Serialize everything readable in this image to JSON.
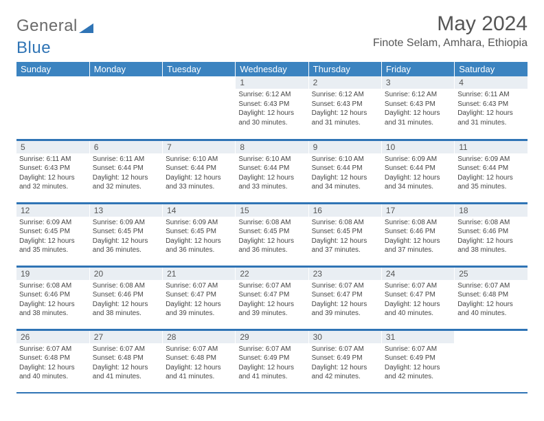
{
  "brand": {
    "part1": "General",
    "part2": "Blue"
  },
  "header": {
    "month": "May 2024",
    "location": "Finote Selam, Amhara, Ethiopia"
  },
  "colors": {
    "header_bg": "#3b83c0",
    "rule": "#2f74b5",
    "day_bg": "#e9eef3"
  },
  "weekdays": [
    "Sunday",
    "Monday",
    "Tuesday",
    "Wednesday",
    "Thursday",
    "Friday",
    "Saturday"
  ],
  "weeks": [
    [
      {
        "n": "",
        "lines": []
      },
      {
        "n": "",
        "lines": []
      },
      {
        "n": "",
        "lines": []
      },
      {
        "n": "1",
        "lines": [
          "Sunrise: 6:12 AM",
          "Sunset: 6:43 PM",
          "Daylight: 12 hours and 30 minutes."
        ]
      },
      {
        "n": "2",
        "lines": [
          "Sunrise: 6:12 AM",
          "Sunset: 6:43 PM",
          "Daylight: 12 hours and 31 minutes."
        ]
      },
      {
        "n": "3",
        "lines": [
          "Sunrise: 6:12 AM",
          "Sunset: 6:43 PM",
          "Daylight: 12 hours and 31 minutes."
        ]
      },
      {
        "n": "4",
        "lines": [
          "Sunrise: 6:11 AM",
          "Sunset: 6:43 PM",
          "Daylight: 12 hours and 31 minutes."
        ]
      }
    ],
    [
      {
        "n": "5",
        "lines": [
          "Sunrise: 6:11 AM",
          "Sunset: 6:43 PM",
          "Daylight: 12 hours and 32 minutes."
        ]
      },
      {
        "n": "6",
        "lines": [
          "Sunrise: 6:11 AM",
          "Sunset: 6:44 PM",
          "Daylight: 12 hours and 32 minutes."
        ]
      },
      {
        "n": "7",
        "lines": [
          "Sunrise: 6:10 AM",
          "Sunset: 6:44 PM",
          "Daylight: 12 hours and 33 minutes."
        ]
      },
      {
        "n": "8",
        "lines": [
          "Sunrise: 6:10 AM",
          "Sunset: 6:44 PM",
          "Daylight: 12 hours and 33 minutes."
        ]
      },
      {
        "n": "9",
        "lines": [
          "Sunrise: 6:10 AM",
          "Sunset: 6:44 PM",
          "Daylight: 12 hours and 34 minutes."
        ]
      },
      {
        "n": "10",
        "lines": [
          "Sunrise: 6:09 AM",
          "Sunset: 6:44 PM",
          "Daylight: 12 hours and 34 minutes."
        ]
      },
      {
        "n": "11",
        "lines": [
          "Sunrise: 6:09 AM",
          "Sunset: 6:44 PM",
          "Daylight: 12 hours and 35 minutes."
        ]
      }
    ],
    [
      {
        "n": "12",
        "lines": [
          "Sunrise: 6:09 AM",
          "Sunset: 6:45 PM",
          "Daylight: 12 hours and 35 minutes."
        ]
      },
      {
        "n": "13",
        "lines": [
          "Sunrise: 6:09 AM",
          "Sunset: 6:45 PM",
          "Daylight: 12 hours and 36 minutes."
        ]
      },
      {
        "n": "14",
        "lines": [
          "Sunrise: 6:09 AM",
          "Sunset: 6:45 PM",
          "Daylight: 12 hours and 36 minutes."
        ]
      },
      {
        "n": "15",
        "lines": [
          "Sunrise: 6:08 AM",
          "Sunset: 6:45 PM",
          "Daylight: 12 hours and 36 minutes."
        ]
      },
      {
        "n": "16",
        "lines": [
          "Sunrise: 6:08 AM",
          "Sunset: 6:45 PM",
          "Daylight: 12 hours and 37 minutes."
        ]
      },
      {
        "n": "17",
        "lines": [
          "Sunrise: 6:08 AM",
          "Sunset: 6:46 PM",
          "Daylight: 12 hours and 37 minutes."
        ]
      },
      {
        "n": "18",
        "lines": [
          "Sunrise: 6:08 AM",
          "Sunset: 6:46 PM",
          "Daylight: 12 hours and 38 minutes."
        ]
      }
    ],
    [
      {
        "n": "19",
        "lines": [
          "Sunrise: 6:08 AM",
          "Sunset: 6:46 PM",
          "Daylight: 12 hours and 38 minutes."
        ]
      },
      {
        "n": "20",
        "lines": [
          "Sunrise: 6:08 AM",
          "Sunset: 6:46 PM",
          "Daylight: 12 hours and 38 minutes."
        ]
      },
      {
        "n": "21",
        "lines": [
          "Sunrise: 6:07 AM",
          "Sunset: 6:47 PM",
          "Daylight: 12 hours and 39 minutes."
        ]
      },
      {
        "n": "22",
        "lines": [
          "Sunrise: 6:07 AM",
          "Sunset: 6:47 PM",
          "Daylight: 12 hours and 39 minutes."
        ]
      },
      {
        "n": "23",
        "lines": [
          "Sunrise: 6:07 AM",
          "Sunset: 6:47 PM",
          "Daylight: 12 hours and 39 minutes."
        ]
      },
      {
        "n": "24",
        "lines": [
          "Sunrise: 6:07 AM",
          "Sunset: 6:47 PM",
          "Daylight: 12 hours and 40 minutes."
        ]
      },
      {
        "n": "25",
        "lines": [
          "Sunrise: 6:07 AM",
          "Sunset: 6:48 PM",
          "Daylight: 12 hours and 40 minutes."
        ]
      }
    ],
    [
      {
        "n": "26",
        "lines": [
          "Sunrise: 6:07 AM",
          "Sunset: 6:48 PM",
          "Daylight: 12 hours and 40 minutes."
        ]
      },
      {
        "n": "27",
        "lines": [
          "Sunrise: 6:07 AM",
          "Sunset: 6:48 PM",
          "Daylight: 12 hours and 41 minutes."
        ]
      },
      {
        "n": "28",
        "lines": [
          "Sunrise: 6:07 AM",
          "Sunset: 6:48 PM",
          "Daylight: 12 hours and 41 minutes."
        ]
      },
      {
        "n": "29",
        "lines": [
          "Sunrise: 6:07 AM",
          "Sunset: 6:49 PM",
          "Daylight: 12 hours and 41 minutes."
        ]
      },
      {
        "n": "30",
        "lines": [
          "Sunrise: 6:07 AM",
          "Sunset: 6:49 PM",
          "Daylight: 12 hours and 42 minutes."
        ]
      },
      {
        "n": "31",
        "lines": [
          "Sunrise: 6:07 AM",
          "Sunset: 6:49 PM",
          "Daylight: 12 hours and 42 minutes."
        ]
      },
      {
        "n": "",
        "lines": []
      }
    ]
  ]
}
